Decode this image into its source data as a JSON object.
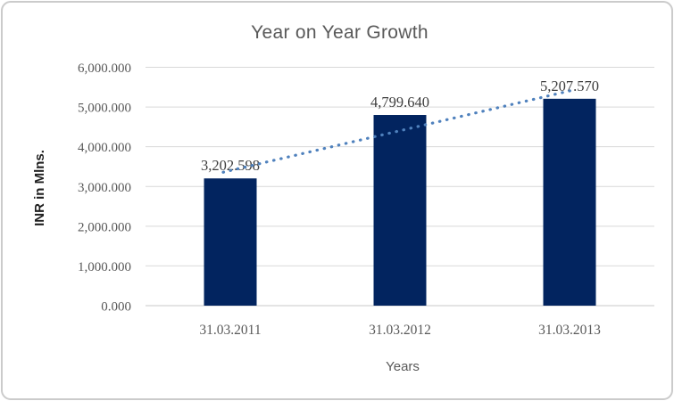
{
  "chart_data": {
    "type": "bar",
    "title": "Year on Year Growth",
    "xlabel": "Years",
    "ylabel": "INR in Mlns.",
    "categories": [
      "31.03.2011",
      "31.03.2012",
      "31.03.2013"
    ],
    "values": [
      3202.598,
      4799.64,
      5207.57
    ],
    "data_labels": [
      "3,202.598",
      "4,799.640",
      "5,207.570"
    ],
    "ylim": [
      0,
      6000
    ],
    "ytick_step": 1000,
    "ytick_labels": [
      "0.000",
      "1,000.000",
      "2,000.000",
      "3,000.000",
      "4,000.000",
      "5,000.000",
      "6,000.000"
    ],
    "grid": true,
    "legend": "none",
    "trendline": {
      "type": "linear",
      "style": "dotted"
    },
    "colors": {
      "bar": "#02245f",
      "trendline": "#4f81bd",
      "gridline": "#d9d9d9",
      "axis_line": "#c9c9c9",
      "title_text": "#595959",
      "tick_text": "#595959",
      "data_label_text": "#3d3d3d",
      "frame_border": "#cbcbcb",
      "background": "#ffffff"
    }
  }
}
